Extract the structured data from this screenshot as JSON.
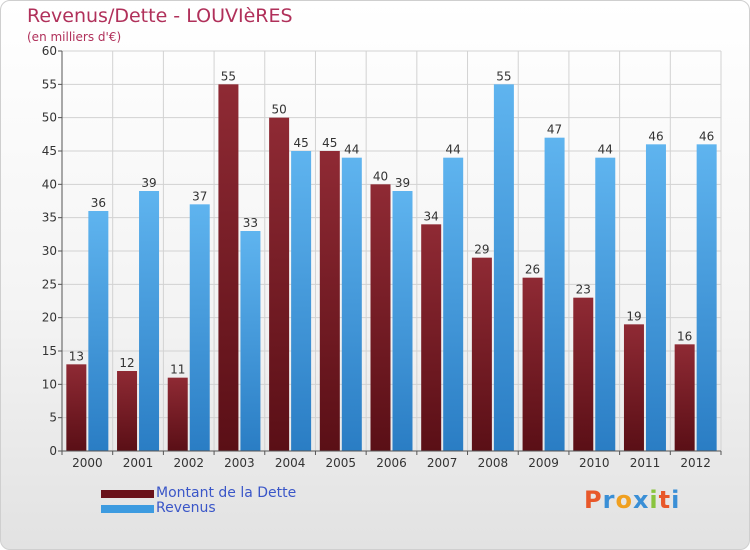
{
  "chart_data": {
    "type": "bar",
    "title": "Revenus/Dette - LOUVIèRES",
    "subtitle": "(en milliers d'€)",
    "categories": [
      "2000",
      "2001",
      "2002",
      "2003",
      "2004",
      "2005",
      "2006",
      "2007",
      "2008",
      "2009",
      "2010",
      "2011",
      "2012"
    ],
    "series": [
      {
        "name": "Montant de la Dette",
        "values": [
          13,
          12,
          11,
          55,
          50,
          45,
          40,
          34,
          29,
          26,
          23,
          19,
          16
        ],
        "color": "#7a1820"
      },
      {
        "name": "Revenus",
        "values": [
          36,
          39,
          37,
          33,
          45,
          44,
          39,
          44,
          55,
          47,
          44,
          46,
          46
        ],
        "color": "#3d9be0"
      }
    ],
    "ylim": [
      0,
      60
    ],
    "yticks": [
      0,
      5,
      10,
      15,
      20,
      25,
      30,
      35,
      40,
      45,
      50,
      55,
      60
    ],
    "grid": true,
    "legend_position": "bottom-left"
  },
  "logo": {
    "letters": [
      "P",
      "r",
      "o",
      "x",
      "i",
      "t",
      "i"
    ],
    "colors": [
      "#e8582a",
      "#3a8fd6",
      "#f0a020",
      "#3a8fd6",
      "#8ac43f",
      "#e8582a",
      "#3a8fd6"
    ]
  }
}
